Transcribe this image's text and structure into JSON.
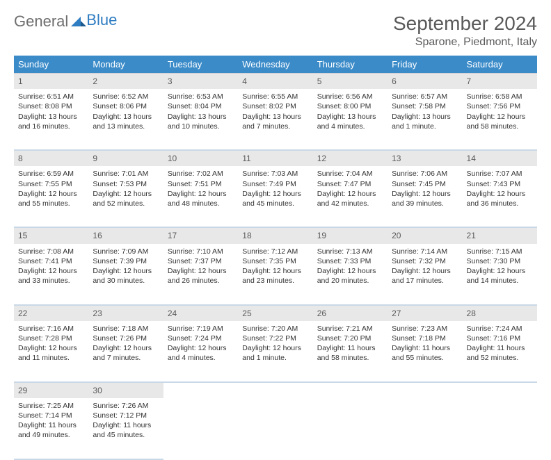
{
  "logo": {
    "text1": "General",
    "text2": "Blue"
  },
  "title": "September 2024",
  "location": "Sparone, Piedmont, Italy",
  "weekdays": [
    "Sunday",
    "Monday",
    "Tuesday",
    "Wednesday",
    "Thursday",
    "Friday",
    "Saturday"
  ],
  "colors": {
    "header_bg": "#3b8bc9",
    "header_text": "#ffffff",
    "daynum_bg": "#e8e8e8",
    "row_divider": "#c9d8e6",
    "title_color": "#5a5a5a",
    "logo_gray": "#6e6e6e",
    "logo_blue": "#2e7cc1"
  },
  "weeks": [
    [
      {
        "n": "1",
        "sr": "Sunrise: 6:51 AM",
        "ss": "Sunset: 8:08 PM",
        "d1": "Daylight: 13 hours",
        "d2": "and 16 minutes."
      },
      {
        "n": "2",
        "sr": "Sunrise: 6:52 AM",
        "ss": "Sunset: 8:06 PM",
        "d1": "Daylight: 13 hours",
        "d2": "and 13 minutes."
      },
      {
        "n": "3",
        "sr": "Sunrise: 6:53 AM",
        "ss": "Sunset: 8:04 PM",
        "d1": "Daylight: 13 hours",
        "d2": "and 10 minutes."
      },
      {
        "n": "4",
        "sr": "Sunrise: 6:55 AM",
        "ss": "Sunset: 8:02 PM",
        "d1": "Daylight: 13 hours",
        "d2": "and 7 minutes."
      },
      {
        "n": "5",
        "sr": "Sunrise: 6:56 AM",
        "ss": "Sunset: 8:00 PM",
        "d1": "Daylight: 13 hours",
        "d2": "and 4 minutes."
      },
      {
        "n": "6",
        "sr": "Sunrise: 6:57 AM",
        "ss": "Sunset: 7:58 PM",
        "d1": "Daylight: 13 hours",
        "d2": "and 1 minute."
      },
      {
        "n": "7",
        "sr": "Sunrise: 6:58 AM",
        "ss": "Sunset: 7:56 PM",
        "d1": "Daylight: 12 hours",
        "d2": "and 58 minutes."
      }
    ],
    [
      {
        "n": "8",
        "sr": "Sunrise: 6:59 AM",
        "ss": "Sunset: 7:55 PM",
        "d1": "Daylight: 12 hours",
        "d2": "and 55 minutes."
      },
      {
        "n": "9",
        "sr": "Sunrise: 7:01 AM",
        "ss": "Sunset: 7:53 PM",
        "d1": "Daylight: 12 hours",
        "d2": "and 52 minutes."
      },
      {
        "n": "10",
        "sr": "Sunrise: 7:02 AM",
        "ss": "Sunset: 7:51 PM",
        "d1": "Daylight: 12 hours",
        "d2": "and 48 minutes."
      },
      {
        "n": "11",
        "sr": "Sunrise: 7:03 AM",
        "ss": "Sunset: 7:49 PM",
        "d1": "Daylight: 12 hours",
        "d2": "and 45 minutes."
      },
      {
        "n": "12",
        "sr": "Sunrise: 7:04 AM",
        "ss": "Sunset: 7:47 PM",
        "d1": "Daylight: 12 hours",
        "d2": "and 42 minutes."
      },
      {
        "n": "13",
        "sr": "Sunrise: 7:06 AM",
        "ss": "Sunset: 7:45 PM",
        "d1": "Daylight: 12 hours",
        "d2": "and 39 minutes."
      },
      {
        "n": "14",
        "sr": "Sunrise: 7:07 AM",
        "ss": "Sunset: 7:43 PM",
        "d1": "Daylight: 12 hours",
        "d2": "and 36 minutes."
      }
    ],
    [
      {
        "n": "15",
        "sr": "Sunrise: 7:08 AM",
        "ss": "Sunset: 7:41 PM",
        "d1": "Daylight: 12 hours",
        "d2": "and 33 minutes."
      },
      {
        "n": "16",
        "sr": "Sunrise: 7:09 AM",
        "ss": "Sunset: 7:39 PM",
        "d1": "Daylight: 12 hours",
        "d2": "and 30 minutes."
      },
      {
        "n": "17",
        "sr": "Sunrise: 7:10 AM",
        "ss": "Sunset: 7:37 PM",
        "d1": "Daylight: 12 hours",
        "d2": "and 26 minutes."
      },
      {
        "n": "18",
        "sr": "Sunrise: 7:12 AM",
        "ss": "Sunset: 7:35 PM",
        "d1": "Daylight: 12 hours",
        "d2": "and 23 minutes."
      },
      {
        "n": "19",
        "sr": "Sunrise: 7:13 AM",
        "ss": "Sunset: 7:33 PM",
        "d1": "Daylight: 12 hours",
        "d2": "and 20 minutes."
      },
      {
        "n": "20",
        "sr": "Sunrise: 7:14 AM",
        "ss": "Sunset: 7:32 PM",
        "d1": "Daylight: 12 hours",
        "d2": "and 17 minutes."
      },
      {
        "n": "21",
        "sr": "Sunrise: 7:15 AM",
        "ss": "Sunset: 7:30 PM",
        "d1": "Daylight: 12 hours",
        "d2": "and 14 minutes."
      }
    ],
    [
      {
        "n": "22",
        "sr": "Sunrise: 7:16 AM",
        "ss": "Sunset: 7:28 PM",
        "d1": "Daylight: 12 hours",
        "d2": "and 11 minutes."
      },
      {
        "n": "23",
        "sr": "Sunrise: 7:18 AM",
        "ss": "Sunset: 7:26 PM",
        "d1": "Daylight: 12 hours",
        "d2": "and 7 minutes."
      },
      {
        "n": "24",
        "sr": "Sunrise: 7:19 AM",
        "ss": "Sunset: 7:24 PM",
        "d1": "Daylight: 12 hours",
        "d2": "and 4 minutes."
      },
      {
        "n": "25",
        "sr": "Sunrise: 7:20 AM",
        "ss": "Sunset: 7:22 PM",
        "d1": "Daylight: 12 hours",
        "d2": "and 1 minute."
      },
      {
        "n": "26",
        "sr": "Sunrise: 7:21 AM",
        "ss": "Sunset: 7:20 PM",
        "d1": "Daylight: 11 hours",
        "d2": "and 58 minutes."
      },
      {
        "n": "27",
        "sr": "Sunrise: 7:23 AM",
        "ss": "Sunset: 7:18 PM",
        "d1": "Daylight: 11 hours",
        "d2": "and 55 minutes."
      },
      {
        "n": "28",
        "sr": "Sunrise: 7:24 AM",
        "ss": "Sunset: 7:16 PM",
        "d1": "Daylight: 11 hours",
        "d2": "and 52 minutes."
      }
    ],
    [
      {
        "n": "29",
        "sr": "Sunrise: 7:25 AM",
        "ss": "Sunset: 7:14 PM",
        "d1": "Daylight: 11 hours",
        "d2": "and 49 minutes."
      },
      {
        "n": "30",
        "sr": "Sunrise: 7:26 AM",
        "ss": "Sunset: 7:12 PM",
        "d1": "Daylight: 11 hours",
        "d2": "and 45 minutes."
      },
      null,
      null,
      null,
      null,
      null
    ]
  ]
}
